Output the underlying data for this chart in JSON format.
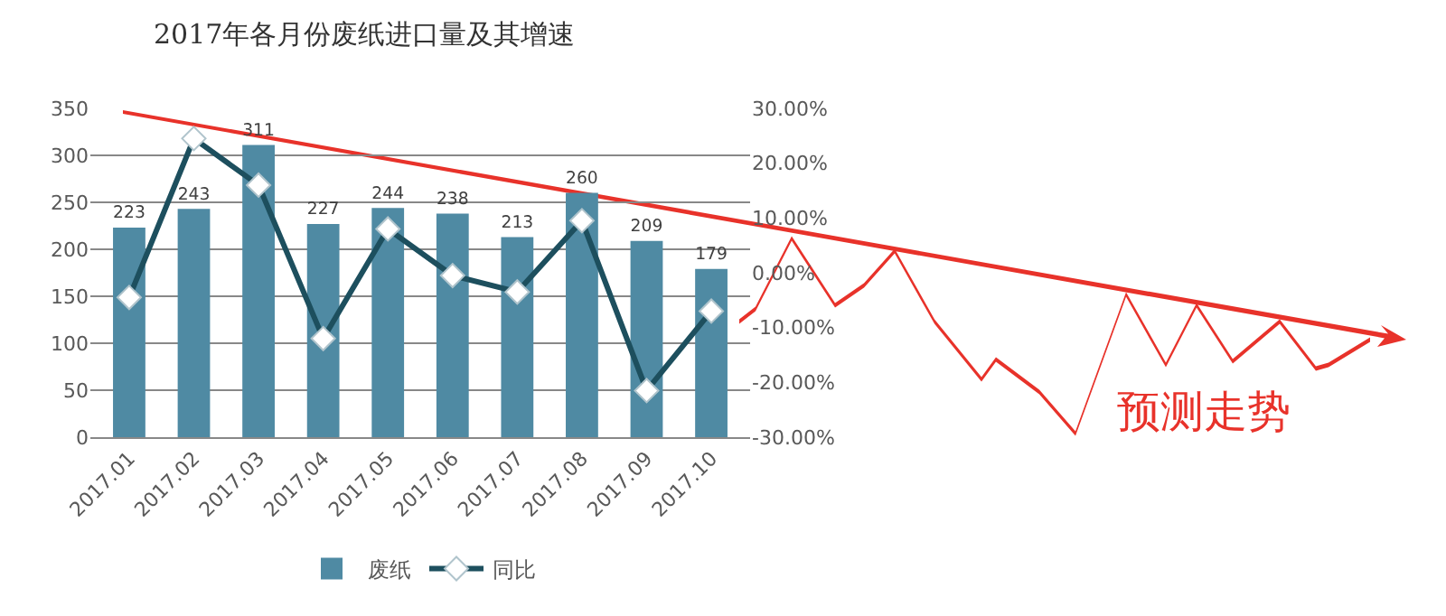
{
  "chart_data": {
    "type": "bar",
    "title": "2017年各月份废纸进口量及其增速",
    "categories": [
      "2017.01",
      "2017.02",
      "2017.03",
      "2017.04",
      "2017.05",
      "2017.06",
      "2017.07",
      "2017.08",
      "2017.09",
      "2017.10"
    ],
    "series": [
      {
        "name": "废纸",
        "color": "#4f8aa3",
        "values": [
          223,
          243,
          311,
          227,
          244,
          238,
          213,
          260,
          209,
          179
        ],
        "value_labels": [
          "223",
          "243",
          "311",
          "227",
          "244",
          "238",
          "213",
          "260",
          "209",
          "179"
        ]
      },
      {
        "name": "同比",
        "type": "line",
        "axis": "y2",
        "color": "#1d4f5e",
        "marker": "diamond",
        "values": [
          -4.5,
          24.5,
          16,
          -12,
          8,
          -0.5,
          -3.5,
          9.5,
          -21.5,
          -7
        ]
      }
    ],
    "ylim": [
      0,
      350
    ],
    "yticks": [
      0,
      50,
      100,
      150,
      200,
      250,
      300,
      350
    ],
    "y2lim": [
      -30,
      30
    ],
    "y2ticks": [
      {
        "value": -30,
        "label": "-30.00%"
      },
      {
        "value": -20,
        "label": "-20.00%"
      },
      {
        "value": -10,
        "label": "-10.00%"
      },
      {
        "value": 0,
        "label": "0.00%"
      },
      {
        "value": 10,
        "label": "10.00%"
      },
      {
        "value": 20,
        "label": "20.00%"
      },
      {
        "value": 30,
        "label": "30.00%"
      }
    ],
    "grid": "y",
    "legend": "bottom",
    "annotations": [
      "预测走势"
    ]
  }
}
